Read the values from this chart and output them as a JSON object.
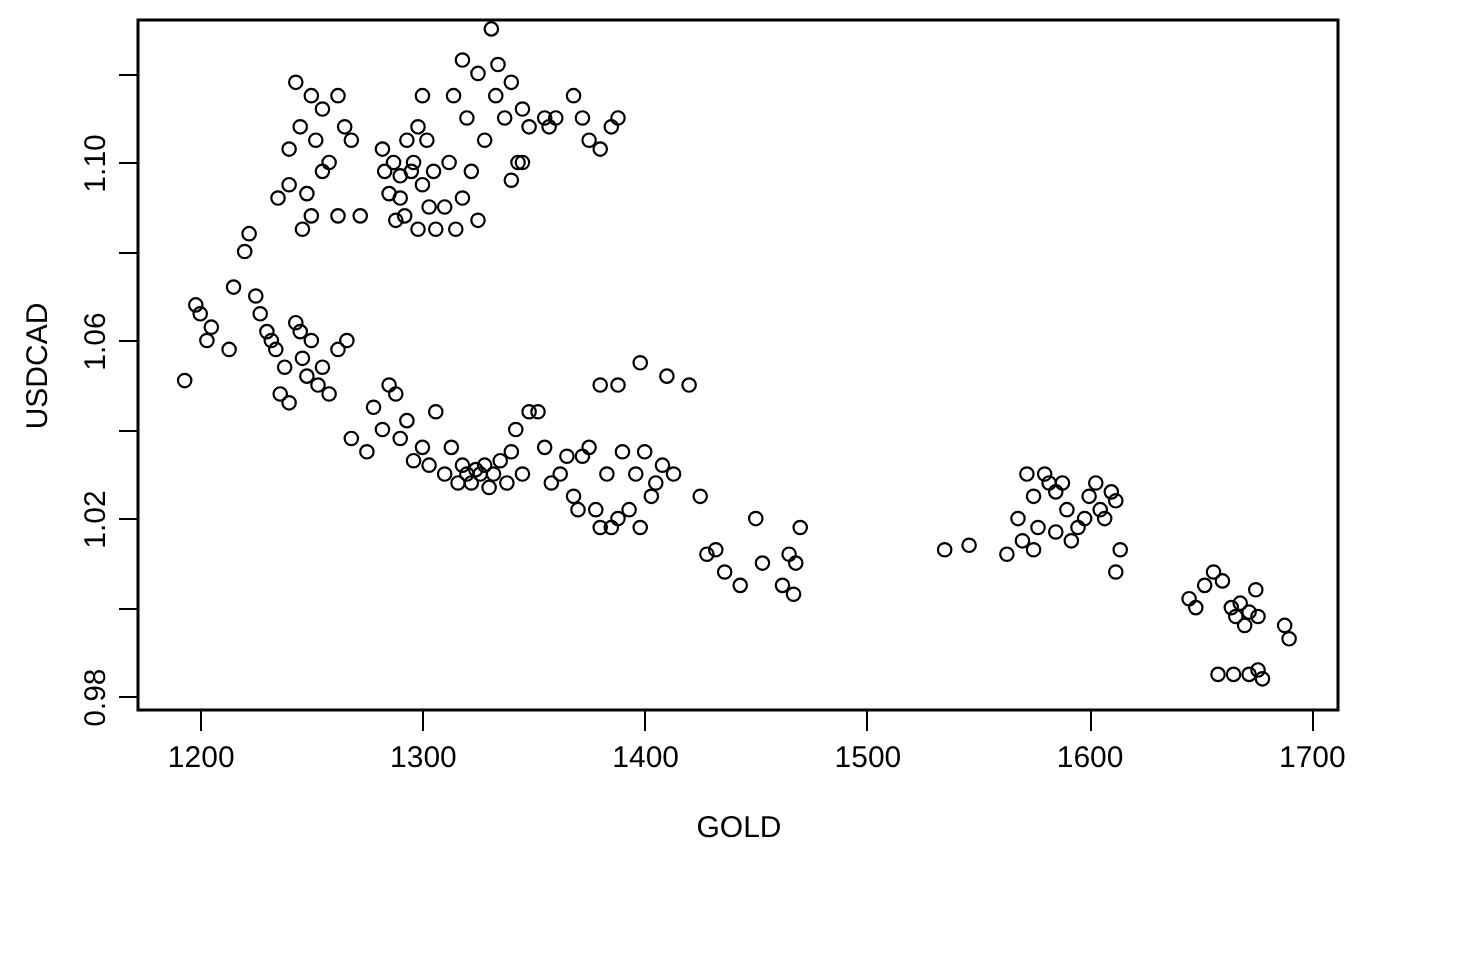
{
  "chart_data": {
    "type": "scatter",
    "xlabel": "GOLD",
    "ylabel": "USDCAD",
    "marker": "circle",
    "grid": false,
    "xlim": [
      1172,
      1712
    ],
    "ylim": [
      0.977,
      1.132
    ],
    "xticks": [
      1200,
      1300,
      1400,
      1500,
      1600,
      1700
    ],
    "yticks": [
      {
        "value": 0.98,
        "label": "0.98"
      },
      {
        "value": 1.0,
        "label": null
      },
      {
        "value": 1.02,
        "label": "1.02"
      },
      {
        "value": 1.04,
        "label": null
      },
      {
        "value": 1.06,
        "label": "1.06"
      },
      {
        "value": 1.08,
        "label": null
      },
      {
        "value": 1.1,
        "label": "1.10"
      },
      {
        "value": 1.12,
        "label": null
      }
    ],
    "series": [
      {
        "color": "#000000",
        "x": [
          1243,
          1250,
          1255,
          1262,
          1245,
          1252,
          1258,
          1265,
          1240,
          1248,
          1255,
          1235,
          1250,
          1262,
          1272,
          1268,
          1240,
          1246,
          1282,
          1287,
          1290,
          1293,
          1296,
          1300,
          1302,
          1298,
          1285,
          1292,
          1298,
          1303,
          1306,
          1288,
          1310,
          1300,
          1295,
          1283,
          1305,
          1290,
          1318,
          1325,
          1331,
          1314,
          1320,
          1322,
          1318,
          1325,
          1315,
          1333,
          1337,
          1340,
          1345,
          1348,
          1355,
          1360,
          1343,
          1328,
          1334,
          1312,
          1368,
          1375,
          1380,
          1385,
          1388,
          1372,
          1340,
          1345,
          1357,
          1193,
          1198,
          1200,
          1203,
          1205,
          1213,
          1215,
          1220,
          1222,
          1225,
          1227,
          1230,
          1232,
          1234,
          1236,
          1240,
          1243,
          1246,
          1248,
          1250,
          1253,
          1255,
          1258,
          1262,
          1266,
          1245,
          1238,
          1268,
          1275,
          1278,
          1282,
          1285,
          1288,
          1290,
          1293,
          1296,
          1300,
          1303,
          1306,
          1310,
          1313,
          1316,
          1318,
          1320,
          1322,
          1324,
          1326,
          1328,
          1330,
          1332,
          1335,
          1338,
          1340,
          1342,
          1345,
          1348,
          1352,
          1355,
          1358,
          1362,
          1365,
          1368,
          1372,
          1375,
          1378,
          1380,
          1383,
          1385,
          1388,
          1390,
          1393,
          1396,
          1398,
          1400,
          1403,
          1405,
          1408,
          1410,
          1413,
          1420,
          1388,
          1380,
          1398,
          1370,
          1425,
          1428,
          1432,
          1436,
          1443,
          1450,
          1453,
          1462,
          1465,
          1467,
          1468,
          1470,
          1535,
          1546,
          1563,
          1568,
          1570,
          1572,
          1575,
          1577,
          1580,
          1582,
          1585,
          1588,
          1590,
          1592,
          1595,
          1598,
          1600,
          1603,
          1605,
          1607,
          1610,
          1612,
          1614,
          1612,
          1575,
          1585,
          1645,
          1648,
          1652,
          1656,
          1660,
          1664,
          1666,
          1668,
          1670,
          1672,
          1675,
          1676,
          1688,
          1690,
          1658,
          1665,
          1672,
          1676,
          1678
        ],
        "values": [
          1.118,
          1.115,
          1.112,
          1.115,
          1.108,
          1.105,
          1.1,
          1.108,
          1.095,
          1.093,
          1.098,
          1.092,
          1.088,
          1.088,
          1.088,
          1.105,
          1.103,
          1.085,
          1.103,
          1.1,
          1.097,
          1.105,
          1.1,
          1.095,
          1.105,
          1.108,
          1.093,
          1.088,
          1.085,
          1.09,
          1.085,
          1.087,
          1.09,
          1.115,
          1.098,
          1.098,
          1.098,
          1.092,
          1.123,
          1.12,
          1.13,
          1.115,
          1.11,
          1.098,
          1.092,
          1.087,
          1.085,
          1.115,
          1.11,
          1.118,
          1.112,
          1.108,
          1.11,
          1.11,
          1.1,
          1.105,
          1.122,
          1.1,
          1.115,
          1.105,
          1.103,
          1.108,
          1.11,
          1.11,
          1.096,
          1.1,
          1.108,
          1.051,
          1.068,
          1.066,
          1.06,
          1.063,
          1.058,
          1.072,
          1.08,
          1.084,
          1.07,
          1.066,
          1.062,
          1.06,
          1.058,
          1.048,
          1.046,
          1.064,
          1.056,
          1.052,
          1.06,
          1.05,
          1.054,
          1.048,
          1.058,
          1.06,
          1.062,
          1.054,
          1.038,
          1.035,
          1.045,
          1.04,
          1.05,
          1.048,
          1.038,
          1.042,
          1.033,
          1.036,
          1.032,
          1.044,
          1.03,
          1.036,
          1.028,
          1.032,
          1.03,
          1.028,
          1.031,
          1.03,
          1.032,
          1.027,
          1.03,
          1.033,
          1.028,
          1.035,
          1.04,
          1.03,
          1.044,
          1.044,
          1.036,
          1.028,
          1.03,
          1.034,
          1.025,
          1.034,
          1.036,
          1.022,
          1.05,
          1.03,
          1.018,
          1.02,
          1.035,
          1.022,
          1.03,
          1.055,
          1.035,
          1.025,
          1.028,
          1.032,
          1.052,
          1.03,
          1.05,
          1.05,
          1.018,
          1.018,
          1.022,
          1.025,
          1.012,
          1.013,
          1.008,
          1.005,
          1.02,
          1.01,
          1.005,
          1.012,
          1.003,
          1.01,
          1.018,
          1.013,
          1.014,
          1.012,
          1.02,
          1.015,
          1.03,
          1.025,
          1.018,
          1.03,
          1.028,
          1.026,
          1.028,
          1.022,
          1.015,
          1.018,
          1.02,
          1.025,
          1.028,
          1.022,
          1.02,
          1.026,
          1.024,
          1.013,
          1.008,
          1.013,
          1.017,
          1.002,
          1.0,
          1.005,
          1.008,
          1.006,
          1.0,
          0.998,
          1.001,
          0.996,
          0.999,
          1.004,
          0.998,
          0.996,
          0.993,
          0.985,
          0.985,
          0.985,
          0.986,
          0.984
        ]
      }
    ]
  }
}
